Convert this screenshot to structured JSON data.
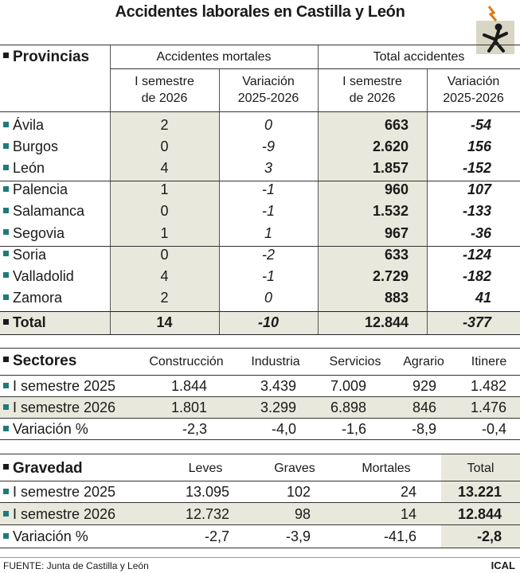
{
  "title": "Accidentes laborales en Castilla y León",
  "colors": {
    "teal_marker": "#1f7a7a",
    "black_marker": "#1a1a1a",
    "shade": "#e9e8dc"
  },
  "icon": "worker-falling-icon",
  "provincias": {
    "label": "Provincias",
    "group_mortales": "Accidentes mortales",
    "group_total": "Total accidentes",
    "col_sem_1": "I semestre",
    "col_sem_2": "de 2026",
    "col_var_1": "Variación",
    "col_var_2": "2025-2026",
    "rows": [
      {
        "name": "Ávila",
        "mort": "2",
        "mort_var": "0",
        "tot": "663",
        "tot_var": "-54"
      },
      {
        "name": "Burgos",
        "mort": "0",
        "mort_var": "-9",
        "tot": "2.620",
        "tot_var": "156"
      },
      {
        "name": "León",
        "mort": "4",
        "mort_var": "3",
        "tot": "1.857",
        "tot_var": "-152"
      },
      {
        "name": "Palencia",
        "mort": "1",
        "mort_var": "-1",
        "tot": "960",
        "tot_var": "107"
      },
      {
        "name": "Salamanca",
        "mort": "0",
        "mort_var": "-1",
        "tot": "1.532",
        "tot_var": "-133"
      },
      {
        "name": "Segovia",
        "mort": "1",
        "mort_var": "1",
        "tot": "967",
        "tot_var": "-36"
      },
      {
        "name": "Soria",
        "mort": "0",
        "mort_var": "-2",
        "tot": "633",
        "tot_var": "-124"
      },
      {
        "name": "Valladolid",
        "mort": "4",
        "mort_var": "-1",
        "tot": "2.729",
        "tot_var": "-182"
      },
      {
        "name": "Zamora",
        "mort": "2",
        "mort_var": "0",
        "tot": "883",
        "tot_var": "41"
      }
    ],
    "total": {
      "name": "Total",
      "mort": "14",
      "mort_var": "-10",
      "tot": "12.844",
      "tot_var": "-377"
    }
  },
  "sectores": {
    "label": "Sectores",
    "columns": [
      "Construcción",
      "Industria",
      "Servicios",
      "Agrario",
      "Itinere"
    ],
    "rows": [
      {
        "label": "I semestre 2025",
        "values": [
          "1.844",
          "3.439",
          "7.009",
          "929",
          "1.482"
        ]
      },
      {
        "label": "I semestre 2026",
        "values": [
          "1.801",
          "3.299",
          "6.898",
          "846",
          "1.476"
        ]
      },
      {
        "label": "Variación %",
        "values": [
          "-2,3",
          "-4,0",
          "-1,6",
          "-8,9",
          "-0,4"
        ]
      }
    ]
  },
  "gravedad": {
    "label": "Gravedad",
    "columns": [
      "Leves",
      "Graves",
      "Mortales",
      "Total"
    ],
    "rows": [
      {
        "label": "I semestre 2025",
        "values": [
          "13.095",
          "102",
          "24",
          "13.221"
        ]
      },
      {
        "label": "I semestre 2026",
        "values": [
          "12.732",
          "98",
          "14",
          "12.844"
        ]
      },
      {
        "label": "Variación %",
        "values": [
          "-2,7",
          "-3,9",
          "-41,6",
          "-2,8"
        ]
      }
    ]
  },
  "footer": {
    "source": "FUENTE: Junta de Castilla y León",
    "credit": "ICAL"
  }
}
